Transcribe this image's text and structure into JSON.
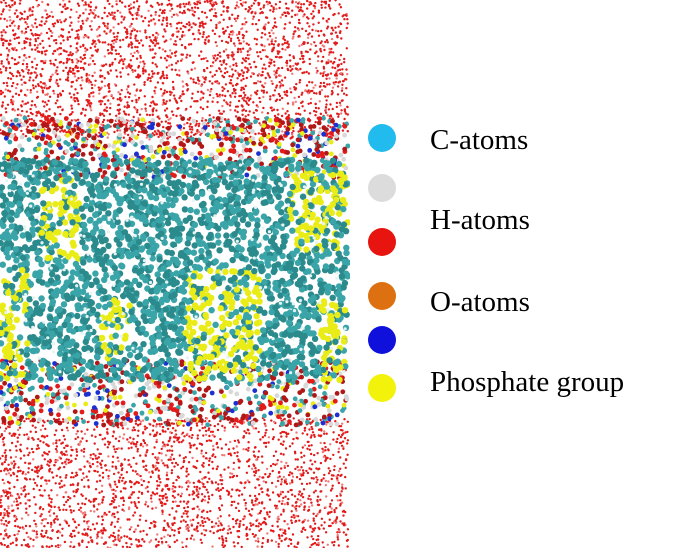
{
  "legend": {
    "items": [
      {
        "label": "C-atoms",
        "color": "#22bbee"
      },
      {
        "label": "",
        "color": "#dcdcdc"
      },
      {
        "label": "H-atoms",
        "color": "#e8140f"
      },
      {
        "label": "",
        "color": ""
      },
      {
        "label": "O-atoms",
        "color": "#dd7010"
      },
      {
        "label": "",
        "color": "#1010dd"
      },
      {
        "label": "Phosphate group",
        "color": "#f2f20a"
      }
    ]
  },
  "scene_colors": {
    "water": "#e21b1b",
    "carbon": "#3aa5a8",
    "carbon_dark": "#2a8a8c",
    "phosphate": "#e9ec16",
    "nitrogen": "#1c2fd0",
    "oxygen_red": "#b01818",
    "hydrogen": "#d8d8d8"
  }
}
